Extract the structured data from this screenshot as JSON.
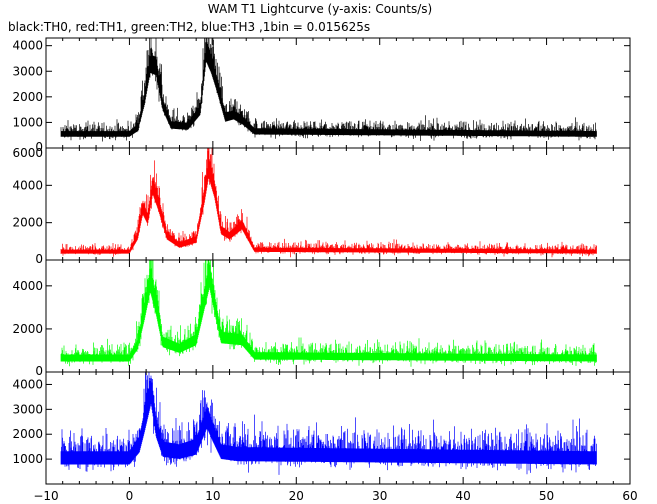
{
  "chart_data": {
    "type": "line",
    "title": "WAM T1 Lightcurve (y-axis: Counts/s)",
    "subtitle_parts": [
      {
        "text": "black:TH0, red:TH1, green:TH2, blue:TH3 ,1bin = 0.015625s",
        "color": "#000000"
      }
    ],
    "xlim": [
      -10,
      60
    ],
    "x_ticks": [
      -10,
      0,
      10,
      20,
      30,
      40,
      50,
      60
    ],
    "x_tick_labels": [
      "−10",
      "0",
      "10",
      "20",
      "30",
      "40",
      "50",
      "60"
    ],
    "data_range": [
      -8.2,
      56
    ],
    "series": [
      {
        "color": "#000000",
        "ylim": [
          0,
          4300
        ],
        "y_ticks": [
          0,
          1000,
          2000,
          3000,
          4000
        ],
        "y_tick_labels": [
          "0",
          "1000",
          "2000",
          "3000",
          "4000"
        ],
        "baseline": 550,
        "noise": 160,
        "profile": [
          [
            -8.2,
            550
          ],
          [
            0,
            550
          ],
          [
            1,
            800
          ],
          [
            1.8,
            1900
          ],
          [
            2.5,
            3300
          ],
          [
            3.2,
            3200
          ],
          [
            4,
            1700
          ],
          [
            5,
            900
          ],
          [
            7,
            850
          ],
          [
            8.5,
            1500
          ],
          [
            9.2,
            3800
          ],
          [
            9.8,
            3300
          ],
          [
            10.5,
            2500
          ],
          [
            11.5,
            1200
          ],
          [
            12.5,
            1300
          ],
          [
            13.5,
            1100
          ],
          [
            15,
            650
          ],
          [
            56,
            550
          ]
        ]
      },
      {
        "color": "#ff0000",
        "ylim": [
          0,
          6000
        ],
        "y_ticks": [
          0,
          2000,
          4000,
          6000
        ],
        "y_tick_labels": [
          "0",
          "2000",
          "4000",
          "6000"
        ],
        "baseline": 450,
        "noise": 150,
        "profile": [
          [
            -8.2,
            450
          ],
          [
            0,
            450
          ],
          [
            1,
            1300
          ],
          [
            1.6,
            2800
          ],
          [
            2.2,
            2200
          ],
          [
            2.8,
            4000
          ],
          [
            3.5,
            3000
          ],
          [
            4.5,
            1300
          ],
          [
            6,
            800
          ],
          [
            8,
            1100
          ],
          [
            9,
            3500
          ],
          [
            9.5,
            5000
          ],
          [
            10.2,
            3800
          ],
          [
            11,
            1600
          ],
          [
            12,
            1300
          ],
          [
            13.5,
            1900
          ],
          [
            15,
            550
          ],
          [
            56,
            450
          ]
        ]
      },
      {
        "color": "#00ff00",
        "ylim": [
          0,
          5200
        ],
        "y_ticks": [
          0,
          2000,
          4000
        ],
        "y_tick_labels": [
          "0",
          "2000",
          "4000"
        ],
        "baseline": 650,
        "noise": 230,
        "profile": [
          [
            -8.2,
            650
          ],
          [
            0,
            650
          ],
          [
            1,
            1300
          ],
          [
            1.8,
            2800
          ],
          [
            2.5,
            4300
          ],
          [
            3.2,
            3100
          ],
          [
            4,
            1400
          ],
          [
            6,
            1100
          ],
          [
            8,
            1500
          ],
          [
            9,
            3400
          ],
          [
            9.6,
            4500
          ],
          [
            10.3,
            3000
          ],
          [
            11,
            1600
          ],
          [
            13.5,
            1500
          ],
          [
            15,
            750
          ],
          [
            56,
            650
          ]
        ]
      },
      {
        "color": "#0000ff",
        "ylim": [
          0,
          4500
        ],
        "y_ticks": [
          1000,
          2000,
          3000,
          4000
        ],
        "y_tick_labels": [
          "1000",
          "2000",
          "3000",
          "4000"
        ],
        "baseline": 1050,
        "noise": 380,
        "profile": [
          [
            -8.2,
            1050
          ],
          [
            0,
            1050
          ],
          [
            1.2,
            1600
          ],
          [
            1.8,
            2500
          ],
          [
            2.6,
            3800
          ],
          [
            3.2,
            2300
          ],
          [
            4,
            1400
          ],
          [
            6,
            1300
          ],
          [
            8,
            1500
          ],
          [
            9.3,
            2700
          ],
          [
            10,
            2100
          ],
          [
            11,
            1300
          ],
          [
            13,
            1200
          ],
          [
            56,
            1050
          ]
        ]
      }
    ]
  }
}
